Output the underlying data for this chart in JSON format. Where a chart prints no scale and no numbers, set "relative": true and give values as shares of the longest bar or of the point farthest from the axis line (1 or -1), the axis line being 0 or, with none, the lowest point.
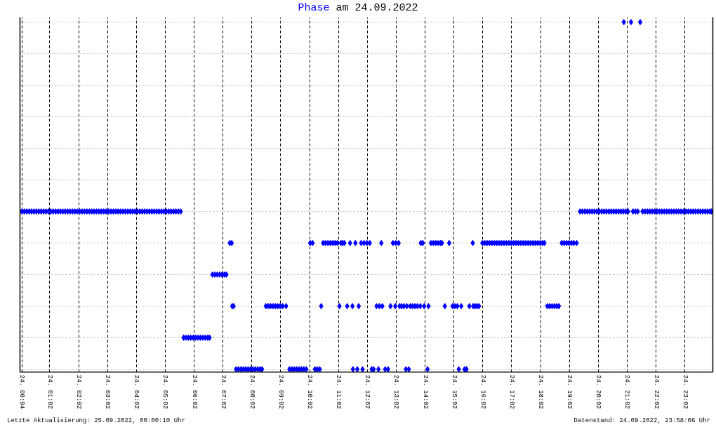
{
  "chart_data": {
    "type": "scatter",
    "title": "am 24.09.2022",
    "relative": true,
    "marker": "diamond",
    "grid": true,
    "xlim": [
      "2022-09-24T00:00",
      "2022-09-25T00:00"
    ],
    "xticks": [
      {
        "value": "2022-09-24T00:04",
        "label": "24. 00:04"
      },
      {
        "value": "2022-09-24T01:02",
        "label": "24. 01:02"
      },
      {
        "value": "2022-09-24T02:02",
        "label": "24. 02:02"
      },
      {
        "value": "2022-09-24T03:02",
        "label": "24. 03:02"
      },
      {
        "value": "2022-09-24T04:02",
        "label": "24. 04:02"
      },
      {
        "value": "2022-09-24T05:02",
        "label": "24. 05:02"
      },
      {
        "value": "2022-09-24T06:02",
        "label": "24. 06:02"
      },
      {
        "value": "2022-09-24T07:02",
        "label": "24. 07:02"
      },
      {
        "value": "2022-09-24T08:02",
        "label": "24. 08:02"
      },
      {
        "value": "2022-09-24T09:02",
        "label": "24. 09:02"
      },
      {
        "value": "2022-09-24T10:02",
        "label": "24. 10:02"
      },
      {
        "value": "2022-09-24T11:02",
        "label": "24. 11:02"
      },
      {
        "value": "2022-09-24T12:02",
        "label": "24. 12:02"
      },
      {
        "value": "2022-09-24T13:02",
        "label": "24. 13:02"
      },
      {
        "value": "2022-09-24T14:02",
        "label": "24. 14:02"
      },
      {
        "value": "2022-09-24T15:02",
        "label": "24. 15:02"
      },
      {
        "value": "2022-09-24T16:02",
        "label": "24. 16:02"
      },
      {
        "value": "2022-09-24T17:02",
        "label": "24. 17:02"
      },
      {
        "value": "2022-09-24T18:02",
        "label": "24. 18:02"
      },
      {
        "value": "2022-09-24T19:02",
        "label": "24. 19:02"
      },
      {
        "value": "2022-09-24T20:02",
        "label": "24. 20:02"
      },
      {
        "value": "2022-09-24T21:02",
        "label": "24. 21:02"
      },
      {
        "value": "2022-09-24T22:02",
        "label": "24. 22:02"
      },
      {
        "value": "2022-09-24T23:02",
        "label": "24. 23:02"
      }
    ],
    "annotations": [
      "Letzte Aktualisierung: 25.09.2022, 00:00:10 Uhr",
      "Datenstand: 24.09.2022, 23:58:06 Uhr"
    ],
    "series": [
      {
        "name": "Phase",
        "color": "#0000ff",
        "x": [
          "2022-09-24T00:04",
          "2022-09-24T00:09",
          "2022-09-24T00:14",
          "2022-09-24T00:19",
          "2022-09-24T00:24",
          "2022-09-24T00:29",
          "2022-09-24T00:34",
          "2022-09-24T00:39",
          "2022-09-24T00:44",
          "2022-09-24T00:49",
          "2022-09-24T00:54",
          "2022-09-24T00:59",
          "2022-09-24T01:04",
          "2022-09-24T01:09",
          "2022-09-24T01:14",
          "2022-09-24T01:19",
          "2022-09-24T01:24",
          "2022-09-24T01:29",
          "2022-09-24T01:34",
          "2022-09-24T01:39",
          "2022-09-24T01:44",
          "2022-09-24T01:49",
          "2022-09-24T01:54",
          "2022-09-24T01:59",
          "2022-09-24T02:04",
          "2022-09-24T02:09",
          "2022-09-24T02:14",
          "2022-09-24T02:19",
          "2022-09-24T02:24",
          "2022-09-24T02:29",
          "2022-09-24T02:34",
          "2022-09-24T02:39",
          "2022-09-24T02:44",
          "2022-09-24T02:49",
          "2022-09-24T02:54",
          "2022-09-24T02:59",
          "2022-09-24T03:04",
          "2022-09-24T03:09",
          "2022-09-24T03:14",
          "2022-09-24T03:19",
          "2022-09-24T03:24",
          "2022-09-24T03:29",
          "2022-09-24T03:34",
          "2022-09-24T03:39",
          "2022-09-24T03:44",
          "2022-09-24T03:49",
          "2022-09-24T03:54",
          "2022-09-24T03:59",
          "2022-09-24T04:04",
          "2022-09-24T04:09",
          "2022-09-24T04:14",
          "2022-09-24T04:19",
          "2022-09-24T04:24",
          "2022-09-24T04:29",
          "2022-09-24T04:34",
          "2022-09-24T04:39",
          "2022-09-24T04:44",
          "2022-09-24T04:49",
          "2022-09-24T04:54",
          "2022-09-24T04:59",
          "2022-09-24T05:04",
          "2022-09-24T05:09",
          "2022-09-24T05:14",
          "2022-09-24T05:19",
          "2022-09-24T05:24",
          "2022-09-24T05:29",
          "2022-09-24T05:34",
          "2022-09-24T05:40",
          "2022-09-24T05:45",
          "2022-09-24T05:50",
          "2022-09-24T05:55",
          "2022-09-24T06:00",
          "2022-09-24T06:05",
          "2022-09-24T06:10",
          "2022-09-24T06:15",
          "2022-09-24T06:20",
          "2022-09-24T06:25",
          "2022-09-24T06:30",
          "2022-09-24T06:34",
          "2022-09-24T06:40",
          "2022-09-24T06:45",
          "2022-09-24T06:50",
          "2022-09-24T06:55",
          "2022-09-24T07:00",
          "2022-09-24T07:05",
          "2022-09-24T07:09",
          "2022-09-24T07:16",
          "2022-09-24T07:20",
          "2022-09-24T07:21",
          "2022-09-24T07:24",
          "2022-09-24T07:29",
          "2022-09-24T07:34",
          "2022-09-24T07:39",
          "2022-09-24T07:44",
          "2022-09-24T07:49",
          "2022-09-24T07:54",
          "2022-09-24T07:59",
          "2022-09-24T08:04",
          "2022-09-24T08:09",
          "2022-09-24T08:14",
          "2022-09-24T08:19",
          "2022-09-24T08:23",
          "2022-09-24T08:31",
          "2022-09-24T08:36",
          "2022-09-24T08:41",
          "2022-09-24T08:46",
          "2022-09-24T08:51",
          "2022-09-24T08:56",
          "2022-09-24T09:01",
          "2022-09-24T09:06",
          "2022-09-24T09:13",
          "2022-09-24T09:20",
          "2022-09-24T09:25",
          "2022-09-24T09:30",
          "2022-09-24T09:35",
          "2022-09-24T09:40",
          "2022-09-24T09:45",
          "2022-09-24T09:50",
          "2022-09-24T09:55",
          "2022-09-24T10:03",
          "2022-09-24T10:08",
          "2022-09-24T10:13",
          "2022-09-24T10:18",
          "2022-09-24T10:23",
          "2022-09-24T10:26",
          "2022-09-24T10:30",
          "2022-09-24T10:35",
          "2022-09-24T10:40",
          "2022-09-24T10:45",
          "2022-09-24T10:50",
          "2022-09-24T10:55",
          "2022-09-24T11:00",
          "2022-09-24T11:04",
          "2022-09-24T11:07",
          "2022-09-24T11:10",
          "2022-09-24T11:14",
          "2022-09-24T11:20",
          "2022-09-24T11:26",
          "2022-09-24T11:31",
          "2022-09-24T11:32",
          "2022-09-24T11:37",
          "2022-09-24T11:41",
          "2022-09-24T11:44",
          "2022-09-24T11:49",
          "2022-09-24T11:52",
          "2022-09-24T11:55",
          "2022-09-24T12:01",
          "2022-09-24T12:07",
          "2022-09-24T12:11",
          "2022-09-24T12:15",
          "2022-09-24T12:21",
          "2022-09-24T12:25",
          "2022-09-24T12:27",
          "2022-09-24T12:31",
          "2022-09-24T12:33",
          "2022-09-24T12:39",
          "2022-09-24T12:45",
          "2022-09-24T12:50",
          "2022-09-24T12:55",
          "2022-09-24T13:00",
          "2022-09-24T13:01",
          "2022-09-24T13:07",
          "2022-09-24T13:09",
          "2022-09-24T13:13",
          "2022-09-24T13:18",
          "2022-09-24T13:22",
          "2022-09-24T13:24",
          "2022-09-24T13:28",
          "2022-09-24T13:31",
          "2022-09-24T13:36",
          "2022-09-24T13:41",
          "2022-09-24T13:46",
          "2022-09-24T13:52",
          "2022-09-24T13:53",
          "2022-09-24T13:57",
          "2022-09-24T14:00",
          "2022-09-24T14:07",
          "2022-09-24T14:09",
          "2022-09-24T14:14",
          "2022-09-24T14:19",
          "2022-09-24T14:24",
          "2022-09-24T14:29",
          "2022-09-24T14:34",
          "2022-09-24T14:37",
          "2022-09-24T14:43",
          "2022-09-24T14:52",
          "2022-09-24T14:59",
          "2022-09-24T15:04",
          "2022-09-24T15:09",
          "2022-09-24T15:12",
          "2022-09-24T15:17",
          "2022-09-24T15:24",
          "2022-09-24T15:28",
          "2022-09-24T15:34",
          "2022-09-24T15:41",
          "2022-09-24T15:42",
          "2022-09-24T15:46",
          "2022-09-24T15:50",
          "2022-09-24T15:54",
          "2022-09-24T16:01",
          "2022-09-24T16:06",
          "2022-09-24T16:11",
          "2022-09-24T16:16",
          "2022-09-24T16:21",
          "2022-09-24T16:26",
          "2022-09-24T16:31",
          "2022-09-24T16:36",
          "2022-09-24T16:41",
          "2022-09-24T16:46",
          "2022-09-24T16:51",
          "2022-09-24T16:56",
          "2022-09-24T17:01",
          "2022-09-24T17:06",
          "2022-09-24T17:11",
          "2022-09-24T17:16",
          "2022-09-24T17:21",
          "2022-09-24T17:26",
          "2022-09-24T17:31",
          "2022-09-24T17:36",
          "2022-09-24T17:41",
          "2022-09-24T17:46",
          "2022-09-24T17:51",
          "2022-09-24T17:56",
          "2022-09-24T18:01",
          "2022-09-24T18:06",
          "2022-09-24T18:10",
          "2022-09-24T18:16",
          "2022-09-24T18:21",
          "2022-09-24T18:26",
          "2022-09-24T18:31",
          "2022-09-24T18:36",
          "2022-09-24T18:40",
          "2022-09-24T18:46",
          "2022-09-24T18:51",
          "2022-09-24T18:56",
          "2022-09-24T19:01",
          "2022-09-24T19:06",
          "2022-09-24T19:11",
          "2022-09-24T19:17",
          "2022-09-24T19:24",
          "2022-09-24T19:29",
          "2022-09-24T19:34",
          "2022-09-24T19:39",
          "2022-09-24T19:44",
          "2022-09-24T19:49",
          "2022-09-24T19:54",
          "2022-09-24T19:59",
          "2022-09-24T20:04",
          "2022-09-24T20:09",
          "2022-09-24T20:14",
          "2022-09-24T20:19",
          "2022-09-24T20:24",
          "2022-09-24T20:29",
          "2022-09-24T20:34",
          "2022-09-24T20:39",
          "2022-09-24T20:44",
          "2022-09-24T20:49",
          "2022-09-24T20:54",
          "2022-09-24T20:55",
          "2022-09-24T20:59",
          "2022-09-24T21:04",
          "2022-09-24T21:10",
          "2022-09-24T21:14",
          "2022-09-24T21:19",
          "2022-09-24T21:24",
          "2022-09-24T21:29",
          "2022-09-24T21:34",
          "2022-09-24T21:39",
          "2022-09-24T21:44",
          "2022-09-24T21:49",
          "2022-09-24T21:54",
          "2022-09-24T21:59",
          "2022-09-24T22:04",
          "2022-09-24T22:09",
          "2022-09-24T22:14",
          "2022-09-24T22:19",
          "2022-09-24T22:24",
          "2022-09-24T22:29",
          "2022-09-24T22:34",
          "2022-09-24T22:39",
          "2022-09-24T22:44",
          "2022-09-24T22:49",
          "2022-09-24T22:54",
          "2022-09-24T22:59",
          "2022-09-24T23:04",
          "2022-09-24T23:09",
          "2022-09-24T23:14",
          "2022-09-24T23:19",
          "2022-09-24T23:24",
          "2022-09-24T23:29",
          "2022-09-24T23:34",
          "2022-09-24T23:39",
          "2022-09-24T23:44",
          "2022-09-24T23:49",
          "2022-09-24T23:54",
          "2022-09-24T23:57"
        ],
        "values": [
          0.4545,
          0.4545,
          0.4545,
          0.4545,
          0.4545,
          0.4545,
          0.4545,
          0.4545,
          0.4545,
          0.4545,
          0.4545,
          0.4545,
          0.4545,
          0.4545,
          0.4545,
          0.4545,
          0.4545,
          0.4545,
          0.4545,
          0.4545,
          0.4545,
          0.4545,
          0.4545,
          0.4545,
          0.4545,
          0.4545,
          0.4545,
          0.4545,
          0.4545,
          0.4545,
          0.4545,
          0.4545,
          0.4545,
          0.4545,
          0.4545,
          0.4545,
          0.4545,
          0.4545,
          0.4545,
          0.4545,
          0.4545,
          0.4545,
          0.4545,
          0.4545,
          0.4545,
          0.4545,
          0.4545,
          0.4545,
          0.4545,
          0.4545,
          0.4545,
          0.4545,
          0.4545,
          0.4545,
          0.4545,
          0.4545,
          0.4545,
          0.4545,
          0.4545,
          0.4545,
          0.4545,
          0.4545,
          0.4545,
          0.4545,
          0.4545,
          0.4545,
          0.4545,
          0.0909,
          0.0909,
          0.0909,
          0.0909,
          0.0909,
          0.0909,
          0.0909,
          0.0909,
          0.0909,
          0.0909,
          0.0909,
          0.0909,
          0.2727,
          0.2727,
          0.2727,
          0.2727,
          0.2727,
          0.2727,
          0.2727,
          0.3636,
          0.3636,
          0.1818,
          0.1818,
          0,
          0,
          0,
          0,
          0,
          0,
          0,
          0,
          0,
          0,
          0,
          0,
          0.1818,
          0.1818,
          0.1818,
          0.1818,
          0.1818,
          0.1818,
          0.1818,
          0.1818,
          0.1818,
          0,
          0,
          0,
          0,
          0,
          0,
          0,
          0,
          0.3636,
          0.3636,
          0,
          0,
          0,
          0.1818,
          0.3636,
          0.3636,
          0.3636,
          0.3636,
          0.3636,
          0.3636,
          0.3636,
          0.1818,
          0.3636,
          0.3636,
          0.3636,
          0.1818,
          0.3636,
          0.1818,
          0,
          0.3636,
          0,
          0.1818,
          0.3636,
          0,
          0.3636,
          0.3636,
          0.3636,
          0,
          0,
          0.1818,
          0,
          0.1818,
          0.3636,
          0.1818,
          0,
          0,
          0.1818,
          0.3636,
          0.1818,
          0.3636,
          0.3636,
          0.1818,
          0.1818,
          0.1818,
          0,
          0.1818,
          0,
          0.1818,
          0.1818,
          0.1818,
          0.1818,
          0.1818,
          0.3636,
          0.3636,
          0.1818,
          0,
          0.1818,
          0.3636,
          0.3636,
          0.3636,
          0.3636,
          0.3636,
          0.3636,
          0.1818,
          0.3636,
          0.1818,
          0.1818,
          0.1818,
          0,
          0.1818,
          0,
          0,
          0.1818,
          0.3636,
          0.1818,
          0.1818,
          0.1818,
          0.1818,
          0.3636,
          0.3636,
          0.3636,
          0.3636,
          0.3636,
          0.3636,
          0.3636,
          0.3636,
          0.3636,
          0.3636,
          0.3636,
          0.3636,
          0.3636,
          0.3636,
          0.3636,
          0.3636,
          0.3636,
          0.3636,
          0.3636,
          0.3636,
          0.3636,
          0.3636,
          0.3636,
          0.3636,
          0.3636,
          0.3636,
          0.3636,
          0.1818,
          0.1818,
          0.1818,
          0.1818,
          0.1818,
          0.1818,
          0.3636,
          0.3636,
          0.3636,
          0.3636,
          0.3636,
          0.3636,
          0.3636,
          0.4545,
          0.4545,
          0.4545,
          0.4545,
          0.4545,
          0.4545,
          0.4545,
          0.4545,
          0.4545,
          0.4545,
          0.4545,
          0.4545,
          0.4545,
          0.4545,
          0.4545,
          0.4545,
          0.4545,
          0.4545,
          0.4545,
          1,
          0.4545,
          0.4545,
          1,
          0.4545,
          0.4545,
          0.4545,
          1,
          0.4545,
          0.4545,
          0.4545,
          0.4545,
          0.4545,
          0.4545,
          0.4545,
          0.4545,
          0.4545,
          0.4545,
          0.4545,
          0.4545,
          0.4545,
          0.4545,
          0.4545,
          0.4545,
          0.4545,
          0.4545,
          0.4545,
          0.4545,
          0.4545,
          0.4545,
          0.4545,
          0.4545,
          0.4545,
          0.4545,
          0.4545,
          0.4545,
          0.4545,
          0.4545
        ]
      }
    ]
  }
}
